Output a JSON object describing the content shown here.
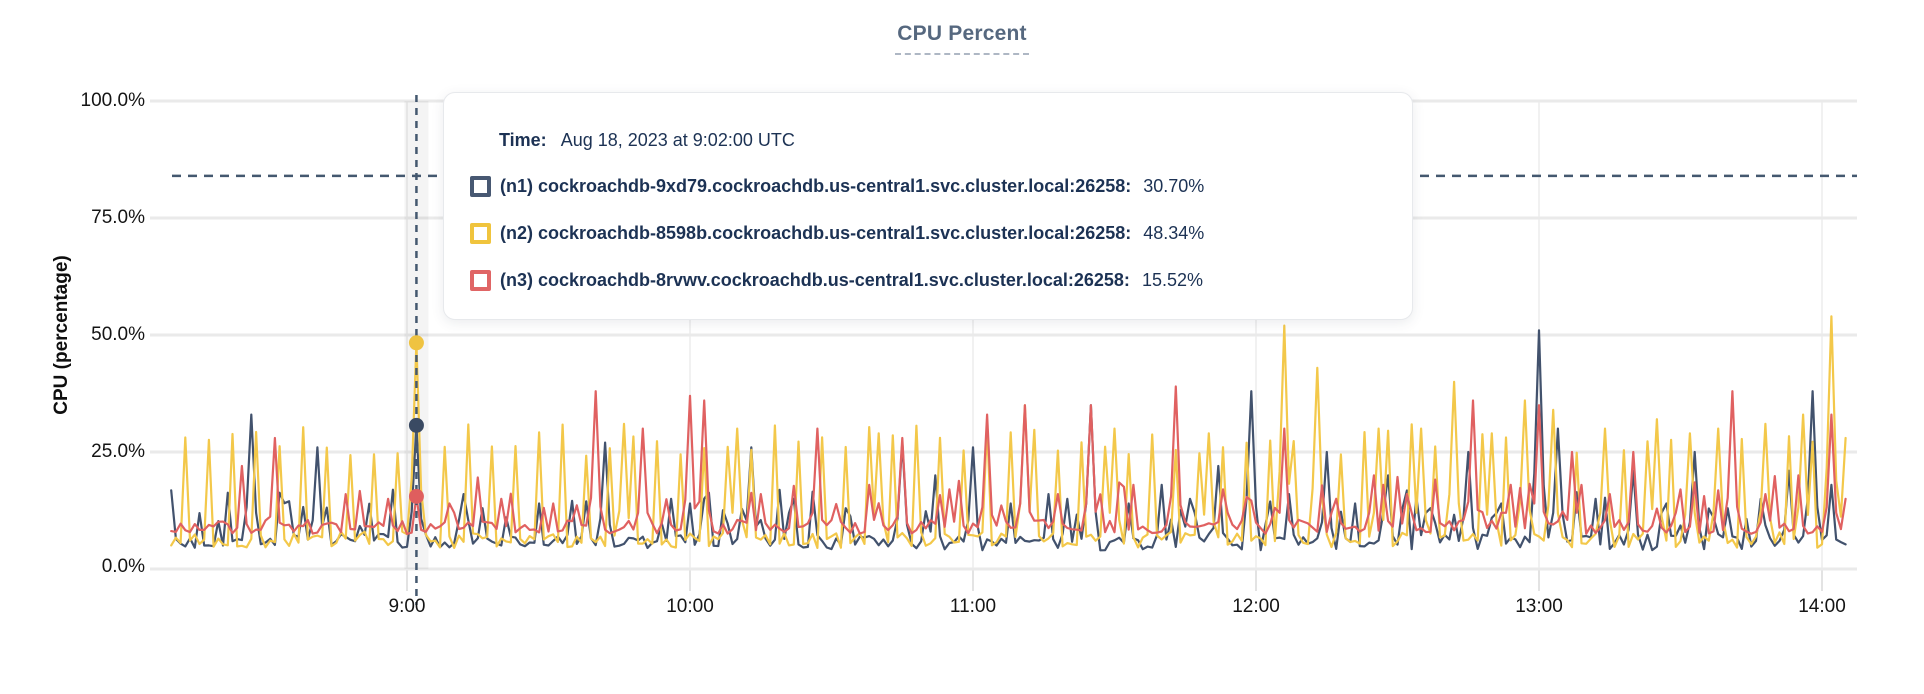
{
  "header": {
    "title": "CPU Percent"
  },
  "axes": {
    "y_axis_label": "CPU (percentage)",
    "y_ticks": [
      "100.0%",
      "75.0%",
      "50.0%",
      "25.0%",
      "0.0%"
    ],
    "x_ticks": [
      "9:00",
      "10:00",
      "11:00",
      "12:00",
      "13:00",
      "14:00"
    ]
  },
  "tooltip": {
    "time_label": "Time:",
    "time_value": "Aug 18, 2023 at 9:02:00 UTC",
    "rows": [
      {
        "label": "(n1) cockroachdb-9xd79.cockroachdb.us-central1.svc.cluster.local:26258:",
        "value": "30.70%",
        "color": "#475872"
      },
      {
        "label": "(n2) cockroachdb-8598b.cockroachdb.us-central1.svc.cluster.local:26258:",
        "value": "48.34%",
        "color": "#f0c43d"
      },
      {
        "label": "(n3) cockroachdb-8rvwv.cockroachdb.us-central1.svc.cluster.local:26258:",
        "value": "15.52%",
        "color": "#e06565"
      }
    ]
  },
  "colors": {
    "title": "#56687f",
    "grid_horizontal": "#eaeaea",
    "grid_vertical": "#f1f1f1",
    "dashed_rule": "#44586f",
    "hover_line": "#44586f",
    "tooltip_text": "#1c3254"
  },
  "chart_data": {
    "type": "line",
    "title": "CPU Percent",
    "xlabel": "",
    "ylabel": "CPU (percentage)",
    "grid": "on",
    "ylim": [
      0,
      100
    ],
    "y_tick_values": [
      100,
      75,
      50,
      25,
      0
    ],
    "y_tick_labels": [
      "100.0%",
      "75.0%",
      "50.0%",
      "25.0%",
      "0.0%"
    ],
    "x_tick_labels": [
      "9:00",
      "10:00",
      "11:00",
      "12:00",
      "13:00",
      "14:00"
    ],
    "x_tick_minutes": [
      540,
      600,
      660,
      720,
      780,
      840
    ],
    "x_range_minutes": [
      490,
      845
    ],
    "threshold_dashed_line_pct": 84,
    "hover": {
      "minute": 542,
      "time": "Aug 18, 2023 at 9:02:00 UTC",
      "values_pct": [
        30.7,
        48.34,
        15.52
      ]
    },
    "legend_position": "tooltip-overlay",
    "series": [
      {
        "id": "n1",
        "name": "cockroachdb-9xd79.cockroachdb.us-central1.svc.cluster.local:26258",
        "color": "#42526d",
        "dot_color": "#3a4a63",
        "hover_value_pct": 30.7,
        "baseline_pct": [
          4,
          7.5
        ],
        "minor_spikes": {
          "probability": 0.2,
          "height_pct": [
            9,
            17
          ]
        },
        "peaks": [
          [
            507,
            33
          ],
          [
            521,
            26
          ],
          [
            542,
            30.7
          ],
          [
            556,
            13
          ],
          [
            568,
            14
          ],
          [
            582,
            27
          ],
          [
            596,
            15
          ],
          [
            600,
            14
          ],
          [
            613,
            26
          ],
          [
            622,
            15
          ],
          [
            633,
            13
          ],
          [
            645,
            27
          ],
          [
            652,
            20
          ],
          [
            660,
            26
          ],
          [
            668,
            14
          ],
          [
            676,
            16
          ],
          [
            685,
            35
          ],
          [
            693,
            14
          ],
          [
            700,
            18
          ],
          [
            706,
            15
          ],
          [
            712,
            22
          ],
          [
            719,
            38
          ],
          [
            727,
            16
          ],
          [
            735,
            25
          ],
          [
            741,
            14
          ],
          [
            748,
            20
          ],
          [
            757,
            13
          ],
          [
            765,
            25
          ],
          [
            772,
            14
          ],
          [
            780,
            51
          ],
          [
            784,
            30
          ],
          [
            792,
            15
          ],
          [
            800,
            21
          ],
          [
            807,
            14
          ],
          [
            813,
            25
          ],
          [
            820,
            13
          ],
          [
            827,
            15
          ],
          [
            833,
            21
          ],
          [
            838,
            38
          ],
          [
            842,
            18
          ]
        ]
      },
      {
        "id": "n2",
        "name": "cockroachdb-8598b.cockroachdb.us-central1.svc.cluster.local:26258",
        "color": "#f3c84a",
        "dot_color": "#efc341",
        "hover_value_pct": 48.34,
        "baseline_pct": [
          4.5,
          8
        ],
        "minor_spikes": {
          "period_min": 5,
          "phase": 2,
          "height_pct": [
            24,
            31
          ]
        },
        "peaks": [
          [
            542,
            48.34
          ],
          [
            586,
            31
          ],
          [
            610,
            30
          ],
          [
            640,
            29
          ],
          [
            671,
            35
          ],
          [
            690,
            30
          ],
          [
            710,
            29
          ],
          [
            726,
            52
          ],
          [
            733,
            43
          ],
          [
            746,
            30
          ],
          [
            755,
            30
          ],
          [
            762,
            40
          ],
          [
            770,
            29
          ],
          [
            777,
            36
          ],
          [
            783,
            34
          ],
          [
            794,
            30
          ],
          [
            805,
            32
          ],
          [
            812,
            29
          ],
          [
            818,
            30
          ],
          [
            828,
            31
          ],
          [
            836,
            33
          ],
          [
            842,
            54
          ],
          [
            845,
            28
          ]
        ]
      },
      {
        "id": "n3",
        "name": "cockroachdb-8rvwv.cockroachdb.us-central1.svc.cluster.local:26258",
        "color": "#e06161",
        "dot_color": "#df5e5e",
        "hover_value_pct": 15.52,
        "baseline_pct": [
          7.5,
          10.5
        ],
        "minor_spikes": {
          "probability": 0.18,
          "height_pct": [
            12,
            20
          ]
        },
        "peaks": [
          [
            505,
            22
          ],
          [
            512,
            28
          ],
          [
            527,
            16
          ],
          [
            536,
            15
          ],
          [
            542,
            15.52
          ],
          [
            549,
            14
          ],
          [
            560,
            15
          ],
          [
            571,
            14
          ],
          [
            580,
            38
          ],
          [
            590,
            30
          ],
          [
            600,
            37
          ],
          [
            603,
            36
          ],
          [
            615,
            16
          ],
          [
            627,
            30
          ],
          [
            638,
            18
          ],
          [
            645,
            28
          ],
          [
            655,
            17
          ],
          [
            663,
            33
          ],
          [
            671,
            35
          ],
          [
            678,
            16
          ],
          [
            685,
            35
          ],
          [
            694,
            18
          ],
          [
            703,
            39
          ],
          [
            713,
            17
          ],
          [
            726,
            30
          ],
          [
            737,
            15
          ],
          [
            745,
            20
          ],
          [
            752,
            16
          ],
          [
            766,
            36
          ],
          [
            774,
            18
          ],
          [
            780,
            35
          ],
          [
            787,
            25
          ],
          [
            795,
            16
          ],
          [
            800,
            25
          ],
          [
            810,
            17
          ],
          [
            821,
            38
          ],
          [
            828,
            16
          ],
          [
            835,
            20
          ],
          [
            842,
            33
          ],
          [
            845,
            15
          ]
        ]
      }
    ]
  }
}
